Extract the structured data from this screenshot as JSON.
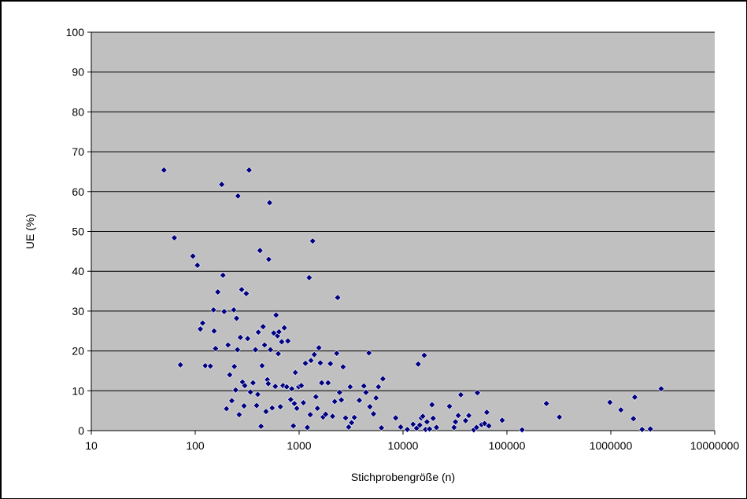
{
  "chart_data": {
    "type": "scatter",
    "title": "",
    "xlabel": "Stichprobengröße (n)",
    "ylabel": "UE (%)",
    "x_scale": "log",
    "xlim": [
      10,
      10000000
    ],
    "ylim": [
      0,
      100
    ],
    "x_ticks": [
      "10",
      "100",
      "1000",
      "10000",
      "100000",
      "1000000",
      "10000000"
    ],
    "y_ticks": [
      "0",
      "10",
      "20",
      "30",
      "40",
      "50",
      "60",
      "70",
      "80",
      "90",
      "100"
    ],
    "grid": "horizontal",
    "legend": "none",
    "colors": {
      "plot_bg": "#c0c0c0",
      "marker": "#000080",
      "gridline": "#000000"
    },
    "points": [
      [
        50,
        65.4
      ],
      [
        63,
        48.4
      ],
      [
        72,
        16.5
      ],
      [
        95,
        43.8
      ],
      [
        105,
        41.5
      ],
      [
        112,
        25.5
      ],
      [
        118,
        27.0
      ],
      [
        125,
        16.3
      ],
      [
        140,
        16.2
      ],
      [
        150,
        30.3
      ],
      [
        152,
        25.0
      ],
      [
        157,
        20.6
      ],
      [
        165,
        34.8
      ],
      [
        180,
        61.8
      ],
      [
        185,
        39.0
      ],
      [
        190,
        29.9
      ],
      [
        200,
        5.5
      ],
      [
        207,
        21.5
      ],
      [
        215,
        14.0
      ],
      [
        225,
        7.5
      ],
      [
        235,
        30.3
      ],
      [
        238,
        16.1
      ],
      [
        245,
        10.2
      ],
      [
        250,
        28.2
      ],
      [
        255,
        20.3
      ],
      [
        258,
        58.9
      ],
      [
        265,
        4.0
      ],
      [
        272,
        23.4
      ],
      [
        280,
        35.4
      ],
      [
        285,
        12.2
      ],
      [
        295,
        6.2
      ],
      [
        300,
        11.3
      ],
      [
        310,
        34.4
      ],
      [
        320,
        23.1
      ],
      [
        330,
        65.4
      ],
      [
        340,
        9.7
      ],
      [
        360,
        12.0
      ],
      [
        380,
        20.3
      ],
      [
        390,
        6.3
      ],
      [
        400,
        9.1
      ],
      [
        405,
        24.7
      ],
      [
        420,
        45.2
      ],
      [
        430,
        1.1
      ],
      [
        440,
        16.3
      ],
      [
        450,
        26.1
      ],
      [
        465,
        21.5
      ],
      [
        480,
        4.8
      ],
      [
        495,
        12.8
      ],
      [
        505,
        11.8
      ],
      [
        510,
        43.0
      ],
      [
        520,
        57.2
      ],
      [
        530,
        20.3
      ],
      [
        550,
        5.7
      ],
      [
        570,
        24.5
      ],
      [
        590,
        11.1
      ],
      [
        600,
        29.0
      ],
      [
        620,
        23.8
      ],
      [
        630,
        19.3
      ],
      [
        640,
        24.8
      ],
      [
        660,
        6.0
      ],
      [
        680,
        22.3
      ],
      [
        700,
        11.3
      ],
      [
        720,
        25.8
      ],
      [
        760,
        11.0
      ],
      [
        780,
        22.5
      ],
      [
        830,
        7.8
      ],
      [
        850,
        10.5
      ],
      [
        880,
        1.2
      ],
      [
        900,
        6.8
      ],
      [
        920,
        14.6
      ],
      [
        950,
        5.6
      ],
      [
        990,
        11.0
      ],
      [
        1050,
        11.3
      ],
      [
        1100,
        7.0
      ],
      [
        1150,
        16.9
      ],
      [
        1200,
        0.8
      ],
      [
        1250,
        38.4
      ],
      [
        1280,
        4.0
      ],
      [
        1300,
        17.6
      ],
      [
        1350,
        47.6
      ],
      [
        1400,
        19.1
      ],
      [
        1450,
        8.5
      ],
      [
        1500,
        5.6
      ],
      [
        1550,
        20.8
      ],
      [
        1600,
        17.0
      ],
      [
        1650,
        12.0
      ],
      [
        1700,
        3.4
      ],
      [
        1800,
        4.1
      ],
      [
        1900,
        12.0
      ],
      [
        2000,
        16.8
      ],
      [
        2100,
        3.6
      ],
      [
        2200,
        7.3
      ],
      [
        2300,
        19.4
      ],
      [
        2350,
        33.4
      ],
      [
        2450,
        9.6
      ],
      [
        2550,
        7.7
      ],
      [
        2650,
        16.0
      ],
      [
        2800,
        3.2
      ],
      [
        3000,
        0.9
      ],
      [
        3100,
        11.0
      ],
      [
        3200,
        2.0
      ],
      [
        3400,
        3.3
      ],
      [
        3800,
        7.6
      ],
      [
        4200,
        11.2
      ],
      [
        4400,
        9.6
      ],
      [
        4700,
        19.5
      ],
      [
        4800,
        6.0
      ],
      [
        5200,
        4.2
      ],
      [
        5500,
        8.2
      ],
      [
        5800,
        11.0
      ],
      [
        6200,
        0.7
      ],
      [
        6400,
        13.0
      ],
      [
        8500,
        3.2
      ],
      [
        9500,
        0.9
      ],
      [
        11000,
        0.3
      ],
      [
        12500,
        1.6
      ],
      [
        13500,
        0.6
      ],
      [
        14000,
        16.7
      ],
      [
        14500,
        1.4
      ],
      [
        15000,
        3.2
      ],
      [
        15500,
        3.6
      ],
      [
        16000,
        18.9
      ],
      [
        16500,
        0.3
      ],
      [
        17000,
        2.2
      ],
      [
        18000,
        0.4
      ],
      [
        19000,
        6.5
      ],
      [
        19500,
        3.1
      ],
      [
        21000,
        0.8
      ],
      [
        28000,
        6.1
      ],
      [
        31000,
        0.8
      ],
      [
        32000,
        2.2
      ],
      [
        34000,
        3.8
      ],
      [
        36000,
        9.0
      ],
      [
        40000,
        2.5
      ],
      [
        43000,
        3.8
      ],
      [
        48000,
        0.2
      ],
      [
        51000,
        0.8
      ],
      [
        52000,
        9.5
      ],
      [
        57000,
        1.5
      ],
      [
        61000,
        1.8
      ],
      [
        64000,
        4.6
      ],
      [
        67000,
        1.2
      ],
      [
        90000,
        2.6
      ],
      [
        140000,
        0.2
      ],
      [
        240000,
        6.8
      ],
      [
        320000,
        3.4
      ],
      [
        980000,
        7.1
      ],
      [
        1250000,
        5.2
      ],
      [
        1650000,
        3.0
      ],
      [
        1700000,
        8.4
      ],
      [
        2000000,
        0.3
      ],
      [
        2400000,
        0.4
      ],
      [
        3050000,
        10.5
      ]
    ]
  }
}
